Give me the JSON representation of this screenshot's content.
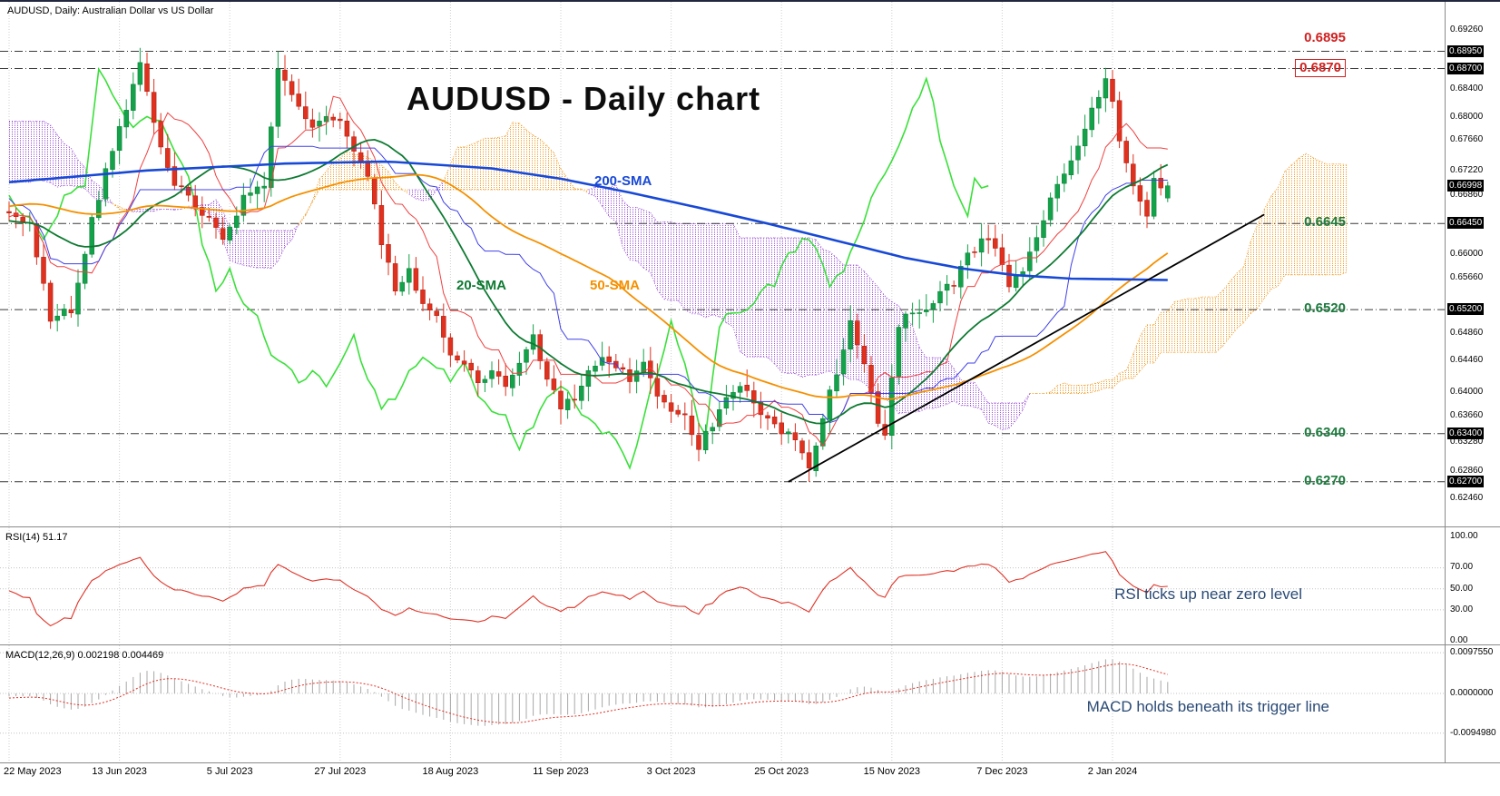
{
  "header": {
    "symbol_info": "AUDUSD, Daily:  Australian Dollar vs US Dollar"
  },
  "colors": {
    "up": "#13a24a",
    "down": "#e0301e",
    "sma20": "#0e7a32",
    "sma50": "#f59000",
    "sma200": "#1849d6",
    "tenkan": "#f04040",
    "kijun": "#4040e8",
    "chikou": "#3ae03a",
    "cloud_bear": "#a05ad5",
    "cloud_bull": "#f0a030",
    "rsi": "#e03226",
    "macd_hist": "#a8a8a8",
    "macd_signal": "#e03226",
    "level_red": "#d02020",
    "level_green": "#1a7a3c",
    "annotation": "#2a4a75",
    "grid": "#cfcfcf"
  },
  "chart_data": {
    "type": "candlestick",
    "title": "AUDUSD - Daily chart",
    "symbol": "AUDUSD",
    "timeframe": "Daily",
    "x_labels": [
      "22 May 2023",
      "13 Jun 2023",
      "5 Jul 2023",
      "27 Jul 2023",
      "18 Aug 2023",
      "11 Sep 2023",
      "3 Oct 2023",
      "25 Oct 2023",
      "15 Nov 2023",
      "7 Dec 2023",
      "2 Jan 2024"
    ],
    "bars_per_label": 16,
    "visible_bars": 169,
    "pre_bars": 80,
    "current_price": "0.66998",
    "y_axis": {
      "plain_labels": [
        "0.69260",
        "0.68400",
        "0.68000",
        "0.67660",
        "0.67220",
        "0.66860",
        "0.66000",
        "0.65660",
        "0.64860",
        "0.64460",
        "0.64000",
        "0.63660",
        "0.63280",
        "0.62860",
        "0.62460"
      ],
      "tag_labels": [
        "0.68950",
        "0.68700",
        "0.66998",
        "0.66450",
        "0.65200",
        "0.63400",
        "0.62700"
      ]
    },
    "levels": [
      {
        "value": 0.6895,
        "label": "0.6895",
        "color": "#d02020",
        "boxed": false,
        "label_offset": -24
      },
      {
        "value": 0.687,
        "label": "0.6870",
        "color": "#d02020",
        "boxed": true,
        "label_offset": -11
      },
      {
        "value": 0.6645,
        "label": "0.6645",
        "color": "#1a7a3c",
        "boxed": false,
        "label_offset": -10
      },
      {
        "value": 0.652,
        "label": "0.6520",
        "color": "#1a7a3c",
        "boxed": false,
        "label_offset": -10
      },
      {
        "value": 0.634,
        "label": "0.6340",
        "color": "#1a7a3c",
        "boxed": false,
        "label_offset": -10
      },
      {
        "value": 0.627,
        "label": "0.6270",
        "color": "#1a7a3c",
        "boxed": false,
        "label_offset": -10
      }
    ],
    "overlays": {
      "sma20": {
        "label": "20-SMA",
        "period": 20
      },
      "sma50": {
        "label": "50-SMA",
        "period": 50
      },
      "sma200": {
        "label": "200-SMA",
        "period": 200
      },
      "ichimoku_cloud": true
    },
    "close_anchors": [
      [
        0,
        0.6655
      ],
      [
        3,
        0.6648
      ],
      [
        6,
        0.6505
      ],
      [
        9,
        0.652
      ],
      [
        12,
        0.665
      ],
      [
        15,
        0.6755
      ],
      [
        17,
        0.681
      ],
      [
        19,
        0.688
      ],
      [
        21,
        0.679
      ],
      [
        24,
        0.67
      ],
      [
        26,
        0.6688
      ],
      [
        28,
        0.666
      ],
      [
        31,
        0.6625
      ],
      [
        34,
        0.668
      ],
      [
        37,
        0.6702
      ],
      [
        39,
        0.6875
      ],
      [
        41,
        0.683
      ],
      [
        44,
        0.6785
      ],
      [
        46,
        0.6805
      ],
      [
        48,
        0.679
      ],
      [
        50,
        0.6755
      ],
      [
        52,
        0.672
      ],
      [
        54,
        0.662
      ],
      [
        56,
        0.655
      ],
      [
        58,
        0.6575
      ],
      [
        60,
        0.653
      ],
      [
        62,
        0.6505
      ],
      [
        64,
        0.6455
      ],
      [
        66,
        0.644
      ],
      [
        68,
        0.6415
      ],
      [
        70,
        0.643
      ],
      [
        72,
        0.6405
      ],
      [
        74,
        0.644
      ],
      [
        76,
        0.648
      ],
      [
        78,
        0.642
      ],
      [
        80,
        0.638
      ],
      [
        82,
        0.6395
      ],
      [
        84,
        0.6425
      ],
      [
        86,
        0.645
      ],
      [
        88,
        0.6435
      ],
      [
        90,
        0.642
      ],
      [
        92,
        0.6445
      ],
      [
        94,
        0.6395
      ],
      [
        96,
        0.637
      ],
      [
        98,
        0.6365
      ],
      [
        100,
        0.632
      ],
      [
        102,
        0.6355
      ],
      [
        104,
        0.639
      ],
      [
        106,
        0.6415
      ],
      [
        108,
        0.638
      ],
      [
        110,
        0.6365
      ],
      [
        112,
        0.634
      ],
      [
        114,
        0.6335
      ],
      [
        116,
        0.629
      ],
      [
        118,
        0.6365
      ],
      [
        120,
        0.643
      ],
      [
        122,
        0.65
      ],
      [
        124,
        0.6445
      ],
      [
        126,
        0.636
      ],
      [
        127,
        0.634
      ],
      [
        129,
        0.65
      ],
      [
        131,
        0.6515
      ],
      [
        133,
        0.652
      ],
      [
        135,
        0.6545
      ],
      [
        137,
        0.656
      ],
      [
        139,
        0.66
      ],
      [
        141,
        0.662
      ],
      [
        143,
        0.6615
      ],
      [
        145,
        0.655
      ],
      [
        147,
        0.658
      ],
      [
        149,
        0.662
      ],
      [
        151,
        0.668
      ],
      [
        153,
        0.672
      ],
      [
        155,
        0.676
      ],
      [
        157,
        0.681
      ],
      [
        159,
        0.6855
      ],
      [
        160,
        0.682
      ],
      [
        161,
        0.676
      ],
      [
        162,
        0.6735
      ],
      [
        163,
        0.6705
      ],
      [
        164,
        0.668
      ],
      [
        165,
        0.665
      ],
      [
        166,
        0.6705
      ],
      [
        167,
        0.6695
      ],
      [
        168,
        0.66998
      ]
    ],
    "pre_close_anchors": [
      [
        -80,
        0.69
      ],
      [
        -72,
        0.702
      ],
      [
        -60,
        0.67
      ],
      [
        -52,
        0.657
      ],
      [
        -44,
        0.6615
      ],
      [
        -36,
        0.67
      ],
      [
        -28,
        0.676
      ],
      [
        -20,
        0.6685
      ],
      [
        -12,
        0.6618
      ],
      [
        -6,
        0.6655
      ],
      [
        -1,
        0.666
      ]
    ],
    "sma200_anchors": [
      [
        0,
        0.6705
      ],
      [
        20,
        0.6722
      ],
      [
        40,
        0.6732
      ],
      [
        55,
        0.6735
      ],
      [
        70,
        0.6725
      ],
      [
        80,
        0.671
      ],
      [
        90,
        0.669
      ],
      [
        100,
        0.6668
      ],
      [
        110,
        0.6645
      ],
      [
        120,
        0.662
      ],
      [
        130,
        0.6595
      ],
      [
        138,
        0.658
      ],
      [
        146,
        0.657
      ],
      [
        154,
        0.6565
      ],
      [
        168,
        0.6563
      ]
    ],
    "extremes": [
      {
        "i": 19,
        "h": 0.69
      },
      {
        "i": 39,
        "h": 0.6895
      },
      {
        "i": 116,
        "l": 0.627,
        "c": 0.629
      },
      {
        "i": 159,
        "h": 0.6871
      },
      {
        "i": 168,
        "o": 0.6682,
        "c": 0.66998,
        "h": 0.6706,
        "l": 0.6676
      }
    ],
    "trendline": {
      "start": {
        "index": 113,
        "price": 0.627
      },
      "end": {
        "index": 182,
        "price": 0.6658
      }
    }
  },
  "rsi_panel": {
    "label": "RSI(14) 51.17",
    "period": 14,
    "current": 51.17,
    "axis_labels": [
      "100.00",
      "70.00",
      "50.00",
      "30.00",
      "0.00"
    ],
    "guide_levels": [
      70,
      50,
      30
    ],
    "annotation": "RSI ticks up near zero level"
  },
  "macd_panel": {
    "label": "MACD(12,26,9) 0.002198 0.004469",
    "macd": 0.002198,
    "signal": 0.004469,
    "axis_labels": [
      "0.0097550",
      "0.0000000",
      "-0.0094980"
    ],
    "annotation": "MACD holds beneath its trigger line"
  }
}
